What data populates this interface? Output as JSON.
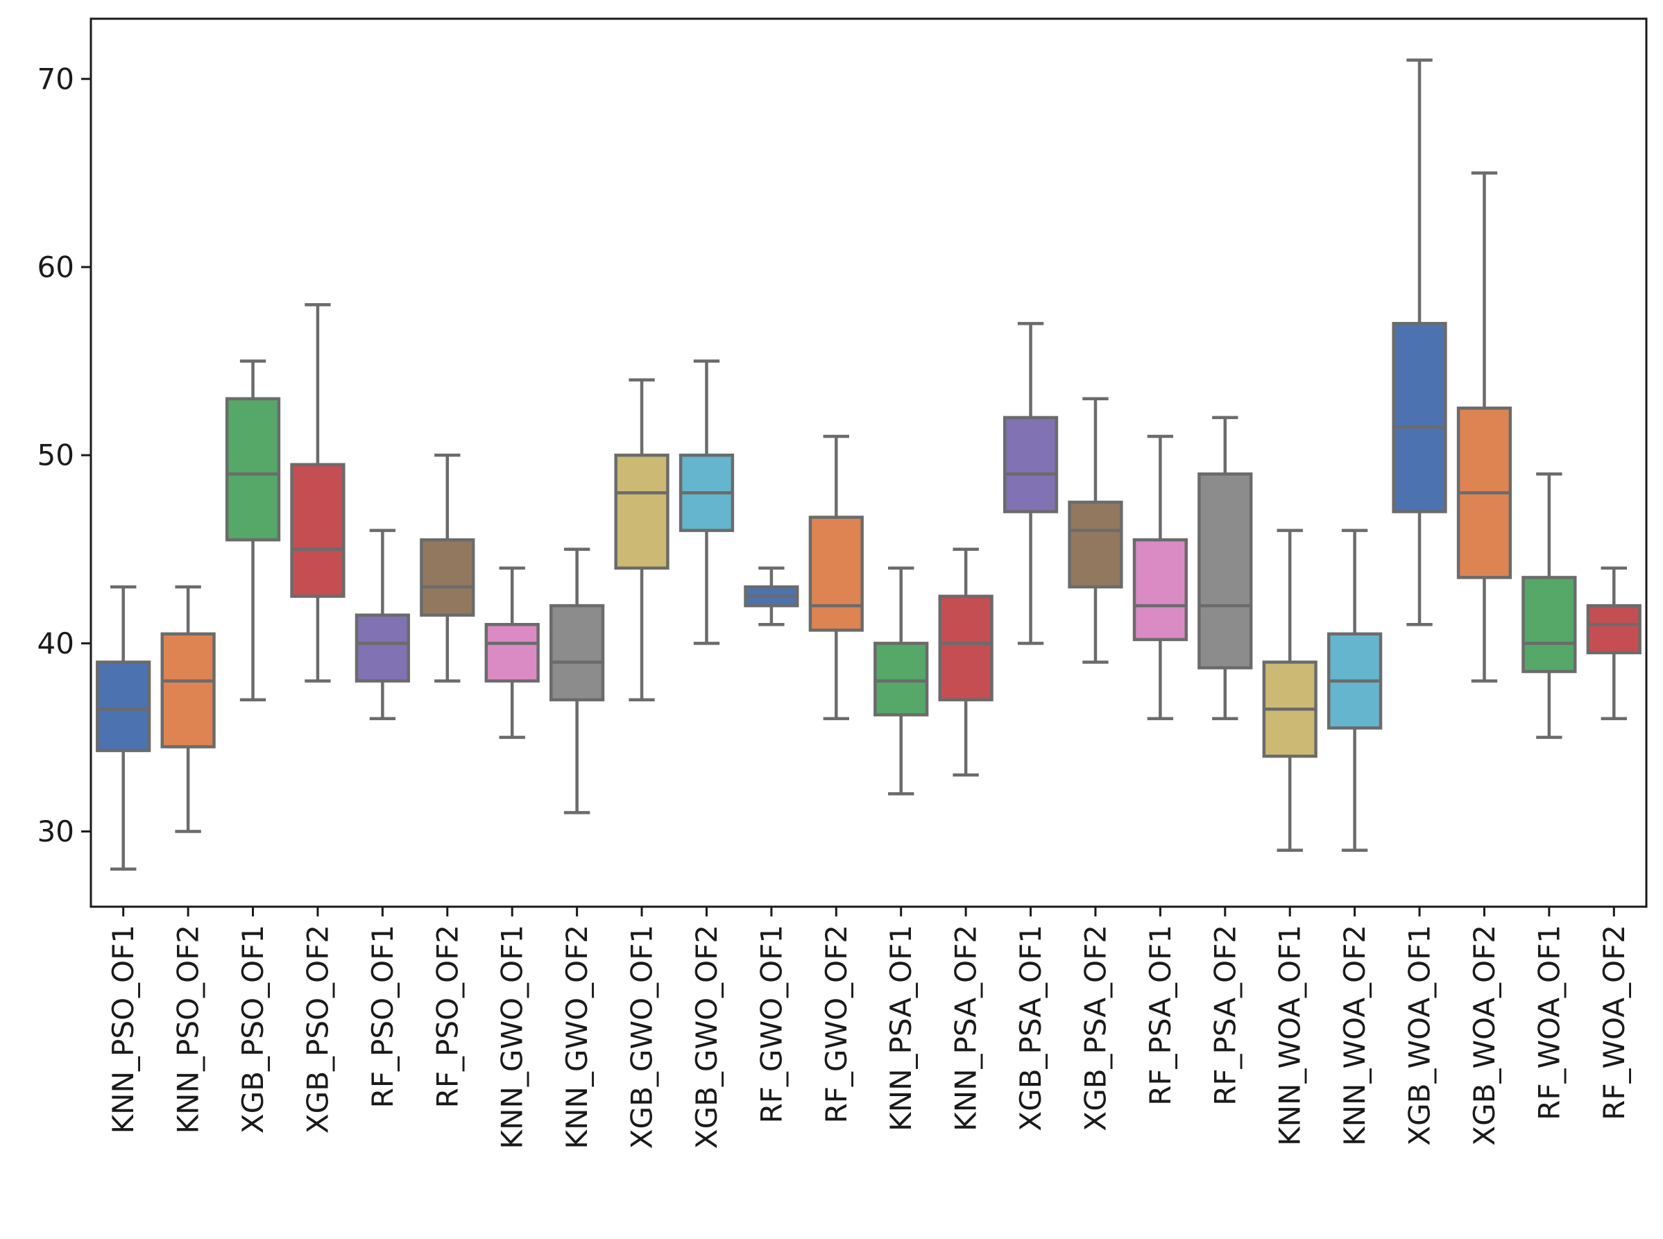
{
  "chart_data": {
    "type": "box",
    "title": "",
    "xlabel": "",
    "ylabel": "",
    "ylim": [
      26,
      73.2
    ],
    "yticks": [
      30,
      40,
      50,
      60,
      70
    ],
    "grid": false,
    "legend": "none",
    "colors": {
      "whisker": "#6b6b6b",
      "axis": "#1a1a1a",
      "background": "#ffffff"
    },
    "boxes": [
      {
        "label": "KNN_PSO_OF1",
        "min": 28,
        "q1": 34.3,
        "median": 36.5,
        "q3": 39,
        "max": 43,
        "color": "#4c72b0"
      },
      {
        "label": "KNN_PSO_OF2",
        "min": 30,
        "q1": 34.5,
        "median": 38,
        "q3": 40.5,
        "max": 43,
        "color": "#dd8452"
      },
      {
        "label": "XGB_PSO_OF1",
        "min": 37,
        "q1": 45.5,
        "median": 49,
        "q3": 53,
        "max": 55,
        "color": "#55a868"
      },
      {
        "label": "XGB_PSO_OF2",
        "min": 38,
        "q1": 42.5,
        "median": 45,
        "q3": 49.5,
        "max": 58,
        "color": "#c44e52"
      },
      {
        "label": "RF_PSO_OF1",
        "min": 36,
        "q1": 38,
        "median": 40,
        "q3": 41.5,
        "max": 46,
        "color": "#8172b3"
      },
      {
        "label": "RF_PSO_OF2",
        "min": 38,
        "q1": 41.5,
        "median": 43,
        "q3": 45.5,
        "max": 50,
        "color": "#937860"
      },
      {
        "label": "KNN_GWO_OF1",
        "min": 35,
        "q1": 38,
        "median": 40,
        "q3": 41,
        "max": 44,
        "color": "#da8bc3"
      },
      {
        "label": "KNN_GWO_OF2",
        "min": 31,
        "q1": 37,
        "median": 39,
        "q3": 42,
        "max": 45,
        "color": "#8c8c8c"
      },
      {
        "label": "XGB_GWO_OF1",
        "min": 37,
        "q1": 44,
        "median": 48,
        "q3": 50,
        "max": 54,
        "color": "#ccb974"
      },
      {
        "label": "XGB_GWO_OF2",
        "min": 40,
        "q1": 46,
        "median": 48,
        "q3": 50,
        "max": 55,
        "color": "#64b5cd"
      },
      {
        "label": "RF_GWO_OF1",
        "min": 41,
        "q1": 42,
        "median": 42.5,
        "q3": 43,
        "max": 44,
        "color": "#4c72b0"
      },
      {
        "label": "RF_GWO_OF2",
        "min": 36,
        "q1": 40.7,
        "median": 42,
        "q3": 46.7,
        "max": 51,
        "color": "#dd8452"
      },
      {
        "label": "KNN_PSA_OF1",
        "min": 32,
        "q1": 36.2,
        "median": 38,
        "q3": 40,
        "max": 44,
        "color": "#55a868"
      },
      {
        "label": "KNN_PSA_OF2",
        "min": 33,
        "q1": 37,
        "median": 40,
        "q3": 42.5,
        "max": 45,
        "color": "#c44e52"
      },
      {
        "label": "XGB_PSA_OF1",
        "min": 40,
        "q1": 47,
        "median": 49,
        "q3": 52,
        "max": 57,
        "color": "#8172b3"
      },
      {
        "label": "XGB_PSA_OF2",
        "min": 39,
        "q1": 43,
        "median": 46,
        "q3": 47.5,
        "max": 53,
        "color": "#937860"
      },
      {
        "label": "RF_PSA_OF1",
        "min": 36,
        "q1": 40.2,
        "median": 42,
        "q3": 45.5,
        "max": 51,
        "color": "#da8bc3"
      },
      {
        "label": "RF_PSA_OF2",
        "min": 36,
        "q1": 38.7,
        "median": 42,
        "q3": 49,
        "max": 52,
        "color": "#8c8c8c"
      },
      {
        "label": "KNN_WOA_OF1",
        "min": 29,
        "q1": 34,
        "median": 36.5,
        "q3": 39,
        "max": 46,
        "color": "#ccb974"
      },
      {
        "label": "KNN_WOA_OF2",
        "min": 29,
        "q1": 35.5,
        "median": 38,
        "q3": 40.5,
        "max": 46,
        "color": "#64b5cd"
      },
      {
        "label": "XGB_WOA_OF1",
        "min": 41,
        "q1": 47,
        "median": 51.5,
        "q3": 57,
        "max": 71,
        "color": "#4c72b0"
      },
      {
        "label": "XGB_WOA_OF2",
        "min": 38,
        "q1": 43.5,
        "median": 48,
        "q3": 52.5,
        "max": 65,
        "color": "#dd8452"
      },
      {
        "label": "RF_WOA_OF1",
        "min": 35,
        "q1": 38.5,
        "median": 40,
        "q3": 43.5,
        "max": 49,
        "color": "#55a868"
      },
      {
        "label": "RF_WOA_OF2",
        "min": 36,
        "q1": 39.5,
        "median": 41,
        "q3": 42,
        "max": 44,
        "color": "#c44e52"
      }
    ]
  }
}
